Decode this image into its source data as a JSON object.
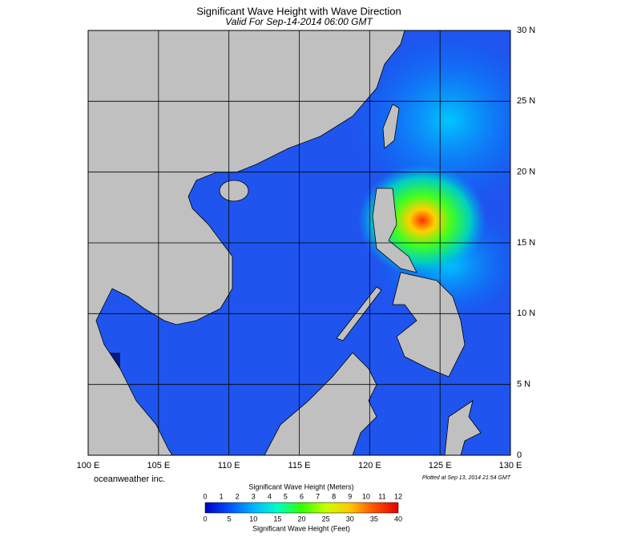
{
  "header": {
    "title": "Significant Wave Height with Wave Direction",
    "subtitle": "Valid For Sep-14-2014 06:00 GMT"
  },
  "map": {
    "lat_labels": [
      "30 N",
      "25 N",
      "20 N",
      "15 N",
      "10 N",
      "5 N",
      "0"
    ],
    "lon_labels": [
      "100 E",
      "105 E",
      "110 E",
      "115 E",
      "120 E",
      "125 E",
      "130 E"
    ]
  },
  "credits": {
    "left": "oceanweather inc.",
    "right": "Plotted at Sep 13, 2014 21:54 GMT"
  },
  "colorbar": {
    "title_top": "Significant Wave Height (Meters)",
    "meters": [
      0,
      1,
      2,
      3,
      4,
      5,
      6,
      7,
      8,
      9,
      10,
      11,
      12
    ],
    "feet": [
      0,
      5,
      10,
      15,
      20,
      25,
      30,
      35,
      40
    ],
    "title_bottom": "Significant Wave Height (Feet)",
    "colors": [
      "#0000c8",
      "#0050ff",
      "#00b4ff",
      "#00ffc8",
      "#32ff00",
      "#c8ff00",
      "#ffc800",
      "#ff5000",
      "#e60000"
    ]
  }
}
